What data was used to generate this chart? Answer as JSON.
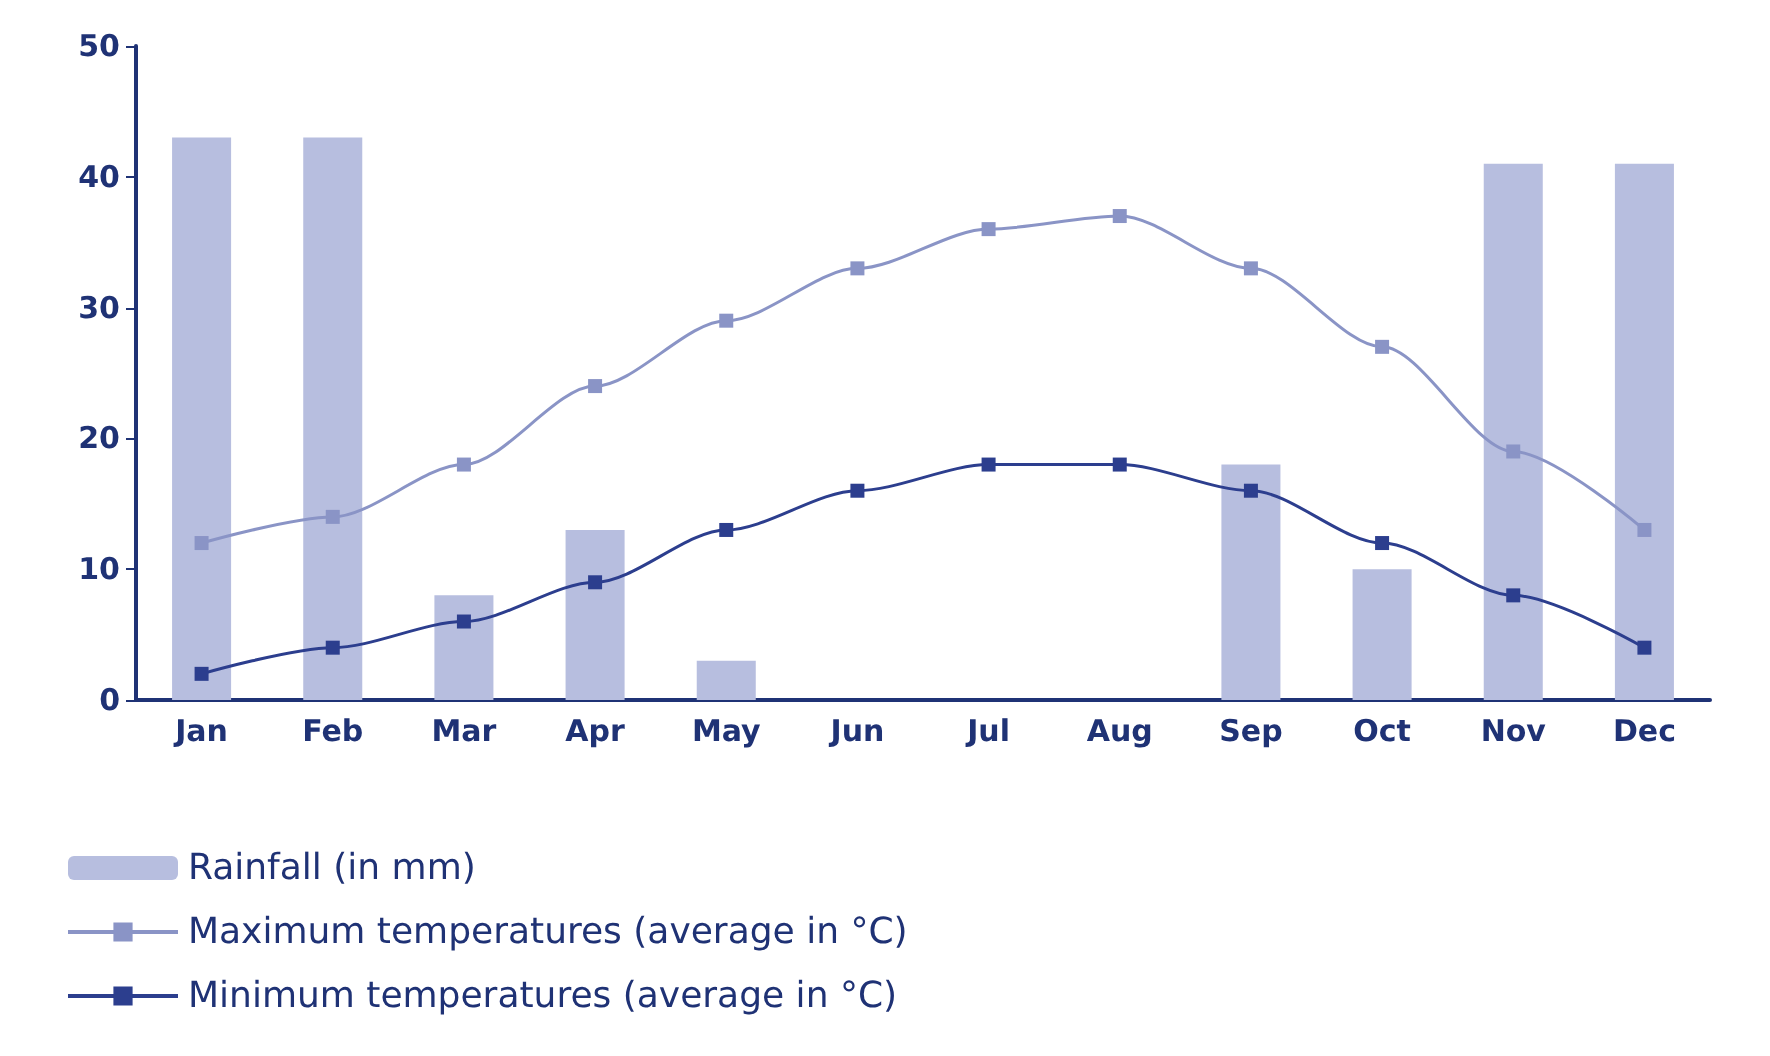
{
  "chart_data": {
    "type": "bar",
    "categories": [
      "Jan",
      "Feb",
      "Mar",
      "Apr",
      "May",
      "Jun",
      "Jul",
      "Aug",
      "Sep",
      "Oct",
      "Nov",
      "Dec"
    ],
    "series": [
      {
        "name": "Rainfall (in mm)",
        "color": "#b7bedf",
        "values": [
          43,
          43,
          8,
          13,
          3,
          0,
          0,
          0,
          18,
          10,
          41,
          41
        ]
      },
      {
        "name": "Maximum temperatures (average in °C)",
        "type": "line",
        "color": "#8a94c6",
        "values": [
          12,
          14,
          18,
          24,
          29,
          33,
          36,
          37,
          33,
          27,
          19,
          13
        ]
      },
      {
        "name": "Minimum temperatures (average in °C)",
        "type": "line",
        "color": "#2c3e8e",
        "values": [
          2,
          4,
          6,
          9,
          13,
          16,
          18,
          18,
          16,
          12,
          8,
          4
        ]
      }
    ],
    "ylim": [
      0,
      50
    ],
    "yticks": [
      0,
      10,
      20,
      30,
      40,
      50
    ],
    "grid": false,
    "legend": "bottom",
    "marker": "square",
    "line_style": "solid"
  }
}
